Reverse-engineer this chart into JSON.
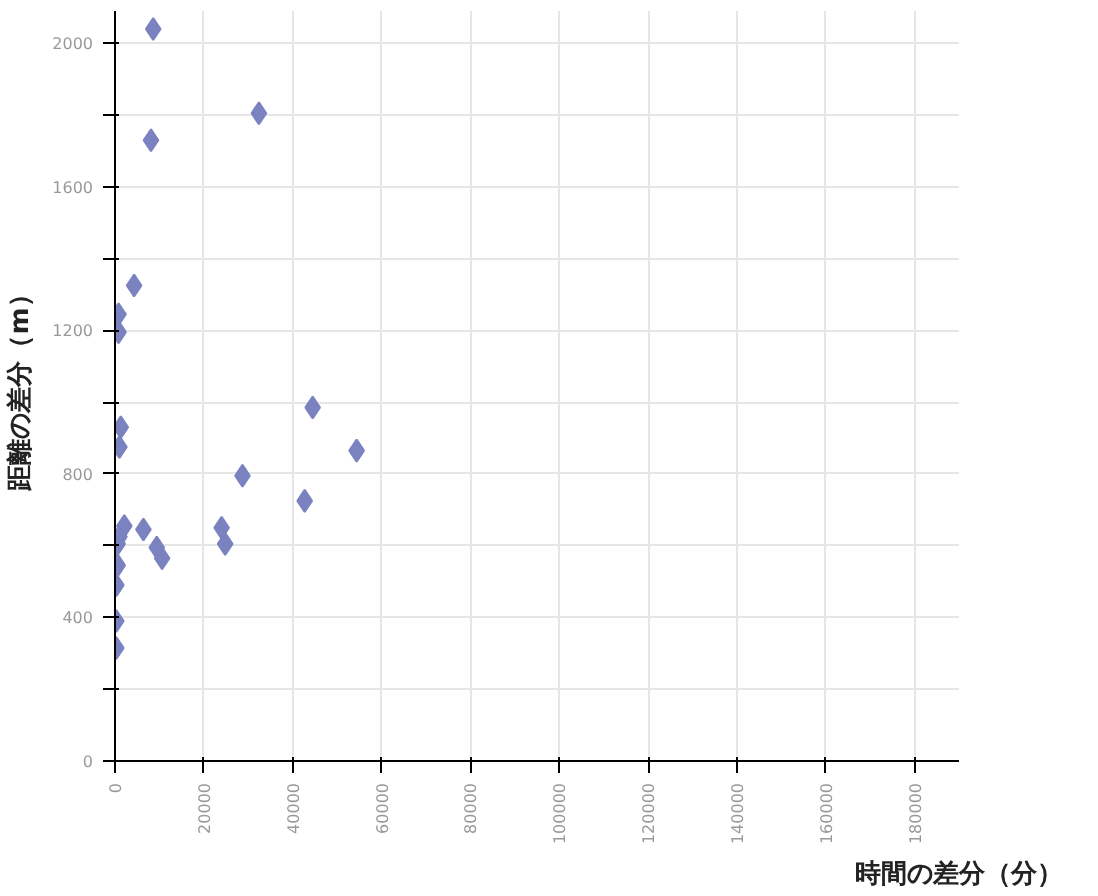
{
  "chart_data": {
    "type": "scatter",
    "xlabel": "時間の差分（分）",
    "ylabel": "距離の差分（m）",
    "marker": "diamond",
    "grid": true,
    "xlim": [
      0,
      190000
    ],
    "xticks": [
      0,
      20000,
      40000,
      60000,
      80000,
      100000,
      120000,
      140000,
      160000,
      180000
    ],
    "ylim": [
      0,
      2090
    ],
    "yticks": [
      0,
      {
        "value": 200,
        "label": null
      },
      400,
      {
        "value": 600,
        "label": null
      },
      800,
      {
        "value": 1000,
        "label": null
      },
      1200,
      {
        "value": 1400,
        "label": null
      },
      1600,
      {
        "value": 1800,
        "label": null
      },
      2000
    ],
    "series": [
      {
        "color": "#7b82c0",
        "x": [
          8600,
          8100,
          32400,
          4300,
          800,
          800,
          44500,
          1300,
          1000,
          28700,
          54400,
          42700,
          2100,
          6400,
          9400,
          10600,
          24000,
          24800,
          600,
          1000,
          600,
          300,
          300,
          300
        ],
        "values": [
          2040,
          1730,
          1805,
          1325,
          1245,
          1195,
          985,
          930,
          875,
          795,
          865,
          725,
          655,
          645,
          595,
          565,
          650,
          605,
          605,
          625,
          545,
          490,
          390,
          315
        ]
      }
    ]
  }
}
